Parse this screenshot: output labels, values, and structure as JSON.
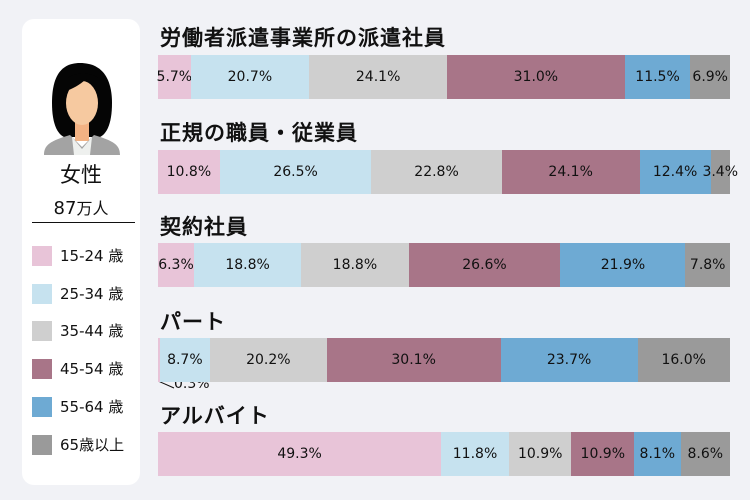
{
  "legend_panel": {
    "gender": "女性",
    "count": "87",
    "count_unit": "万人"
  },
  "colors": [
    "#e8c4d8",
    "#c6e2ef",
    "#cfcfcf",
    "#a87588",
    "#6eaad3",
    "#9a9a9a"
  ],
  "chart_data": {
    "type": "bar",
    "orientation": "horizontal-stacked-100",
    "legend_placement": "left",
    "series_names": [
      "15-24 歳",
      "25-34 歳",
      "35-44 歳",
      "45-54 歳",
      "55-64 歳",
      "65歳以上"
    ],
    "categories": [
      "労働者派遣事業所の派遣社員",
      "正規の職員・従業員",
      "契約社員",
      "パート",
      "アルバイト"
    ],
    "values": [
      [
        5.7,
        20.7,
        24.1,
        31.0,
        11.5,
        6.9
      ],
      [
        10.8,
        26.5,
        22.8,
        24.1,
        12.4,
        3.4
      ],
      [
        6.3,
        18.8,
        18.8,
        26.6,
        21.9,
        7.8
      ],
      [
        0.3,
        8.7,
        20.2,
        30.1,
        23.7,
        16.0
      ],
      [
        49.3,
        11.8,
        10.9,
        10.9,
        8.1,
        8.6
      ]
    ],
    "unit": "%"
  }
}
